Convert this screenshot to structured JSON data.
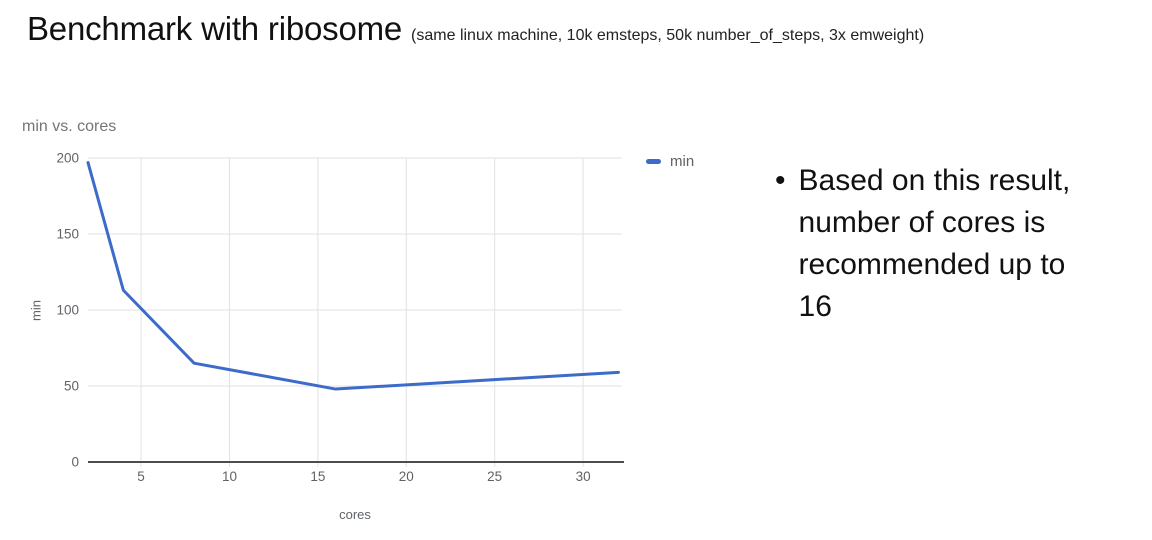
{
  "header": {
    "title": "Benchmark with ribosome",
    "subtitle": "(same linux machine, 10k emsteps, 50k number_of_steps, 3x emweight)"
  },
  "chart_data": {
    "type": "line",
    "title": "min vs. cores",
    "xlabel": "cores",
    "ylabel": "min",
    "series": [
      {
        "name": "min",
        "color": "#3d6bc9",
        "x": [
          2,
          4,
          8,
          16,
          32
        ],
        "y": [
          197,
          113,
          65,
          48,
          59
        ]
      }
    ],
    "xlim": [
      2,
      32.2
    ],
    "ylim": [
      0,
      200
    ],
    "xticks": [
      5,
      10,
      15,
      20,
      25,
      30
    ],
    "yticks": [
      0,
      50,
      100,
      150,
      200
    ],
    "grid": true,
    "legend_position": "right"
  },
  "notes": {
    "bullet": "•",
    "text_lines": [
      "Based on this result,",
      "number of cores is",
      "recommended up to",
      "16"
    ]
  },
  "colors": {
    "series_blue": "#3d6bc9",
    "grid": "#e2e2e2",
    "axis": "#4d4d4d",
    "tick_label": "#5f6368",
    "chart_title_gray": "#757575"
  }
}
